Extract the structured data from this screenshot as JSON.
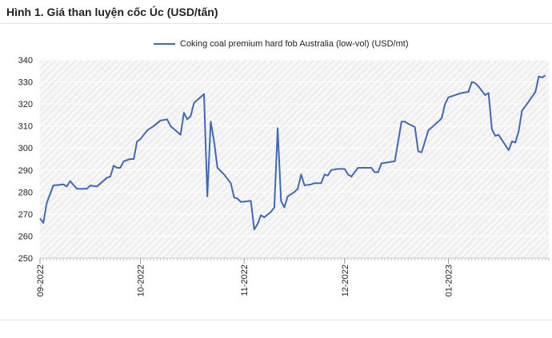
{
  "title": "Hình 1. Giá than luyện cốc Úc (USD/tấn)",
  "colors": {
    "line": "#4169b3",
    "grid": "#dcdcdc",
    "hatch": "#e6e6e6",
    "axis": "#c9c9c9"
  },
  "chart_data": {
    "type": "line",
    "title": "",
    "xlabel": "",
    "ylabel": "",
    "ylim": [
      250,
      340
    ],
    "yticks": [
      250,
      260,
      270,
      280,
      290,
      300,
      310,
      320,
      330,
      340
    ],
    "xlim": [
      "2022-09-01",
      "2023-01-31"
    ],
    "xticks": [
      "2022-09-01",
      "2022-10-01",
      "2022-11-01",
      "2022-12-01",
      "2023-01-01"
    ],
    "xtick_labels": [
      "09-2022",
      "10-2022",
      "11-2022",
      "12-2022",
      "01-2023"
    ],
    "grid": "horizontal",
    "legend_position": "top",
    "series": [
      {
        "name": "Coking coal premium hard fob Australia (low-vol) (USD/mt)",
        "points": [
          [
            "2022-09-01",
            268
          ],
          [
            "2022-09-02",
            266
          ],
          [
            "2022-09-03",
            275
          ],
          [
            "2022-09-05",
            283
          ],
          [
            "2022-09-08",
            283.5
          ],
          [
            "2022-09-09",
            282.5
          ],
          [
            "2022-09-10",
            285
          ],
          [
            "2022-09-12",
            281.5
          ],
          [
            "2022-09-15",
            281.5
          ],
          [
            "2022-09-16",
            283
          ],
          [
            "2022-09-18",
            282.5
          ],
          [
            "2022-09-21",
            286.5
          ],
          [
            "2022-09-22",
            287
          ],
          [
            "2022-09-23",
            292
          ],
          [
            "2022-09-24",
            291
          ],
          [
            "2022-09-25",
            291
          ],
          [
            "2022-09-26",
            294
          ],
          [
            "2022-09-28",
            295
          ],
          [
            "2022-09-29",
            295
          ],
          [
            "2022-09-30",
            303
          ],
          [
            "2022-10-01",
            304
          ],
          [
            "2022-10-03",
            308
          ],
          [
            "2022-10-05",
            310
          ],
          [
            "2022-10-07",
            312.5
          ],
          [
            "2022-10-09",
            313
          ],
          [
            "2022-10-10",
            310
          ],
          [
            "2022-10-13",
            306
          ],
          [
            "2022-10-14",
            316
          ],
          [
            "2022-10-15",
            313
          ],
          [
            "2022-10-16",
            314.5
          ],
          [
            "2022-10-17",
            320.5
          ],
          [
            "2022-10-20",
            324.5
          ],
          [
            "2022-10-21",
            278
          ],
          [
            "2022-10-22",
            312
          ],
          [
            "2022-10-23",
            303
          ],
          [
            "2022-10-24",
            291
          ],
          [
            "2022-10-26",
            288
          ],
          [
            "2022-10-28",
            284
          ],
          [
            "2022-10-29",
            277.5
          ],
          [
            "2022-10-30",
            277
          ],
          [
            "2022-10-31",
            275.5
          ],
          [
            "2022-11-03",
            276
          ],
          [
            "2022-11-04",
            263
          ],
          [
            "2022-11-05",
            265.5
          ],
          [
            "2022-11-06",
            269.5
          ],
          [
            "2022-11-07",
            268.5
          ],
          [
            "2022-11-09",
            271
          ],
          [
            "2022-11-10",
            273
          ],
          [
            "2022-11-11",
            309
          ],
          [
            "2022-11-12",
            276
          ],
          [
            "2022-11-13",
            273
          ],
          [
            "2022-11-14",
            278
          ],
          [
            "2022-11-16",
            280
          ],
          [
            "2022-11-17",
            281.5
          ],
          [
            "2022-11-18",
            288
          ],
          [
            "2022-11-19",
            283
          ],
          [
            "2022-11-21",
            283.5
          ],
          [
            "2022-11-22",
            284
          ],
          [
            "2022-11-23",
            284
          ],
          [
            "2022-11-24",
            284
          ],
          [
            "2022-11-25",
            288
          ],
          [
            "2022-11-26",
            287.5
          ],
          [
            "2022-11-27",
            290
          ],
          [
            "2022-11-29",
            290.5
          ],
          [
            "2022-12-01",
            290.5
          ],
          [
            "2022-12-02",
            288
          ],
          [
            "2022-12-03",
            287
          ],
          [
            "2022-12-05",
            291
          ],
          [
            "2022-12-07",
            291
          ],
          [
            "2022-12-09",
            291
          ],
          [
            "2022-12-10",
            289
          ],
          [
            "2022-12-11",
            289
          ],
          [
            "2022-12-12",
            293
          ],
          [
            "2022-12-14",
            293.5
          ],
          [
            "2022-12-16",
            294
          ],
          [
            "2022-12-18",
            312
          ],
          [
            "2022-12-19",
            312
          ],
          [
            "2022-12-20",
            311
          ],
          [
            "2022-12-22",
            309.5
          ],
          [
            "2022-12-23",
            298.5
          ],
          [
            "2022-12-24",
            298
          ],
          [
            "2022-12-25",
            303
          ],
          [
            "2022-12-26",
            308
          ],
          [
            "2022-12-29",
            312
          ],
          [
            "2022-12-30",
            313.5
          ],
          [
            "2022-12-31",
            320
          ],
          [
            "2023-01-01",
            323
          ],
          [
            "2023-01-03",
            324
          ],
          [
            "2023-01-05",
            325
          ],
          [
            "2023-01-07",
            325.5
          ],
          [
            "2023-01-08",
            330
          ],
          [
            "2023-01-09",
            329.5
          ],
          [
            "2023-01-10",
            328
          ],
          [
            "2023-01-12",
            324
          ],
          [
            "2023-01-13",
            325
          ],
          [
            "2023-01-14",
            308.5
          ],
          [
            "2023-01-15",
            305.5
          ],
          [
            "2023-01-16",
            306
          ],
          [
            "2023-01-19",
            299
          ],
          [
            "2023-01-20",
            303
          ],
          [
            "2023-01-21",
            302.5
          ],
          [
            "2023-01-22",
            307.5
          ],
          [
            "2023-01-23",
            317
          ],
          [
            "2023-01-24",
            319
          ],
          [
            "2023-01-27",
            325.5
          ],
          [
            "2023-01-28",
            332.5
          ],
          [
            "2023-01-29",
            332
          ],
          [
            "2023-01-30",
            333
          ]
        ]
      }
    ]
  }
}
